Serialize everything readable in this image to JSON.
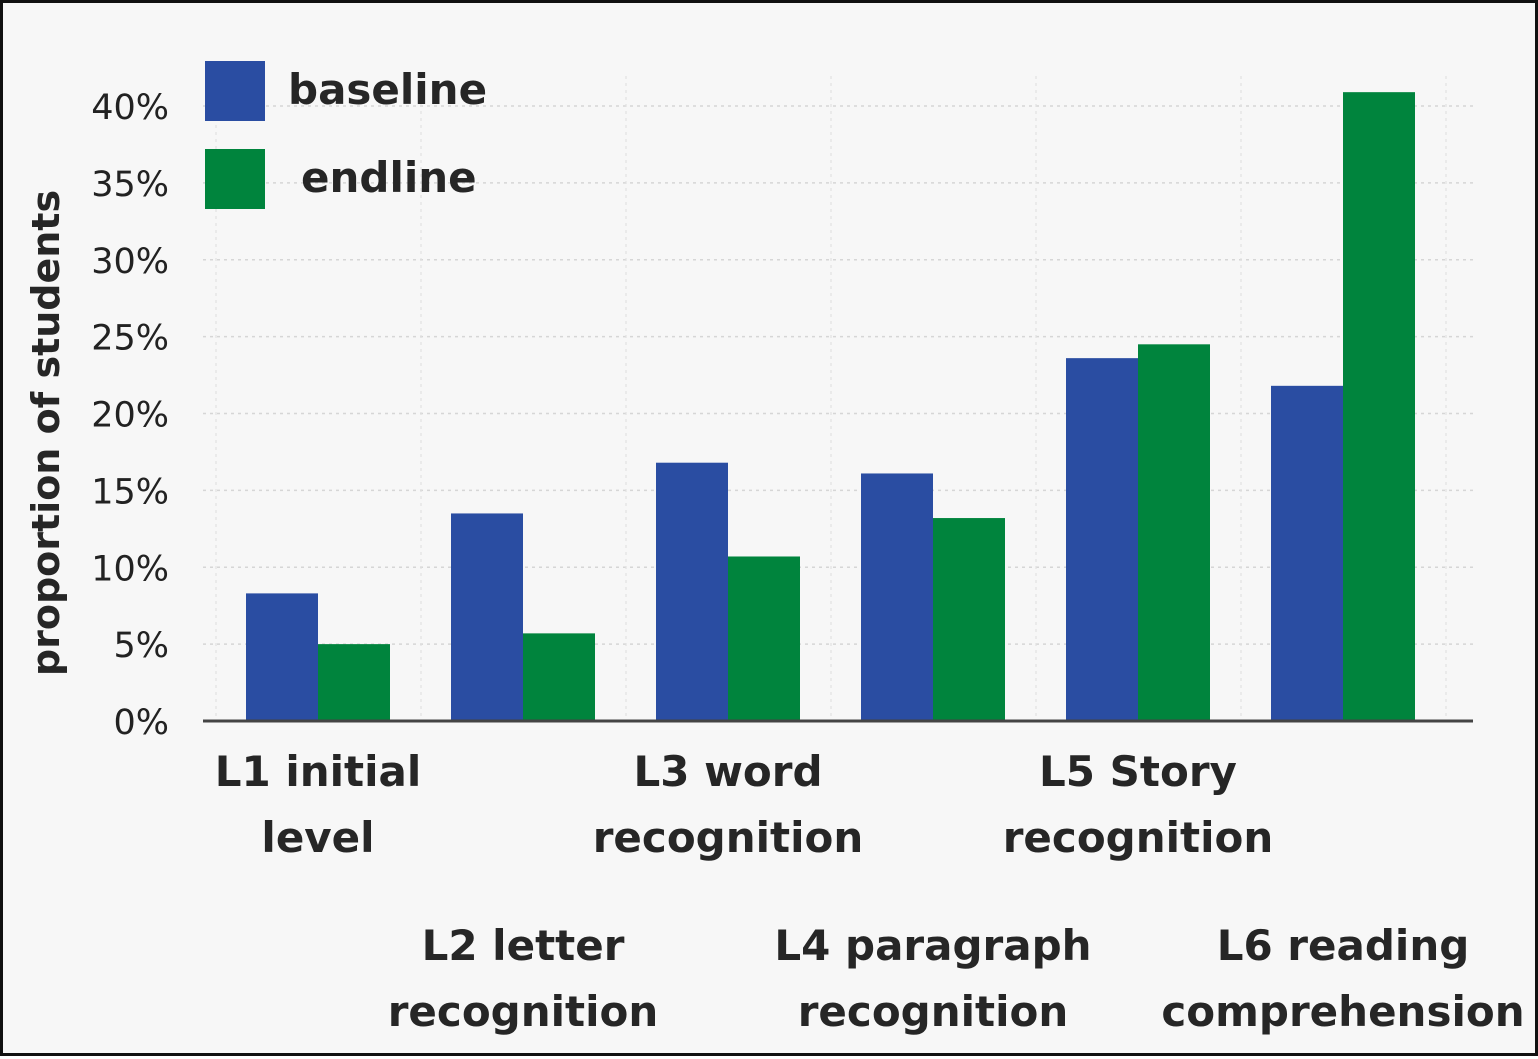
{
  "chart_data": {
    "type": "bar",
    "title": "",
    "xlabel": "",
    "ylabel": "proportion of students",
    "ylim": [
      0,
      40
    ],
    "yticks": [
      "0%",
      "5%",
      "10%",
      "15%",
      "20%",
      "25%",
      "30%",
      "35%",
      "40%"
    ],
    "ytick_values": [
      0,
      5,
      10,
      15,
      20,
      25,
      30,
      35,
      40
    ],
    "grid": true,
    "legend_position": "top-left",
    "categories": [
      [
        "L1 initial",
        "level"
      ],
      [
        "L2 letter",
        "recognition"
      ],
      [
        "L3 word",
        "recognition"
      ],
      [
        "L4 paragraph",
        "recognition"
      ],
      [
        "L5 Story",
        "recognition"
      ],
      [
        "L6 reading",
        "comprehension"
      ]
    ],
    "series": [
      {
        "name": "baseline",
        "color": "#2a4da2",
        "values": [
          8.3,
          13.5,
          16.8,
          16.1,
          23.6,
          21.8
        ]
      },
      {
        "name": "endline",
        "color": "#00843d",
        "values": [
          5.0,
          5.7,
          10.7,
          13.2,
          24.5,
          40.9
        ]
      }
    ]
  }
}
